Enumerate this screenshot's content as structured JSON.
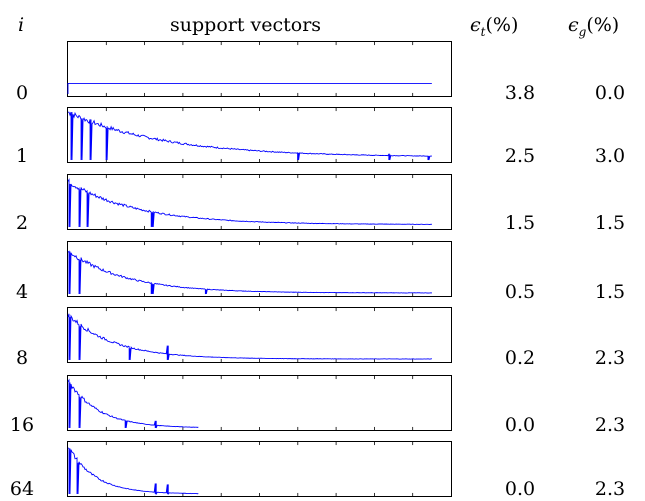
{
  "header": {
    "i": "i",
    "support_vectors": "support vectors",
    "eps_t_symbol": "ϵ",
    "eps_t_sub": "t",
    "eps_t_unit": "(%)",
    "eps_g_symbol": "ϵ",
    "eps_g_sub": "g",
    "eps_g_unit": "(%)"
  },
  "rows": [
    {
      "i": "0",
      "eps_t": "3.8",
      "eps_g": "0.0"
    },
    {
      "i": "1",
      "eps_t": "2.5",
      "eps_g": "3.0"
    },
    {
      "i": "2",
      "eps_t": "1.5",
      "eps_g": "1.5"
    },
    {
      "i": "4",
      "eps_t": "0.5",
      "eps_g": "1.5"
    },
    {
      "i": "8",
      "eps_t": "0.2",
      "eps_g": "2.3"
    },
    {
      "i": "16",
      "eps_t": "0.0",
      "eps_g": "2.3"
    },
    {
      "i": "64",
      "eps_t": "0.0",
      "eps_g": "2.3"
    }
  ],
  "chart_data": {
    "type": "line",
    "line_color": "#0000ff",
    "ylim": [
      0,
      1
    ],
    "xlim": [
      0,
      1
    ],
    "panels": [
      {
        "i": "0",
        "kind": "flat",
        "level": 0.22,
        "end": 0.95
      },
      {
        "i": "1",
        "kind": "decay",
        "peak": 1.0,
        "tail": 0.06,
        "decay": 0.25,
        "end": 0.95,
        "spikes": [
          [
            0.01,
            1.0
          ],
          [
            0.035,
            0.85
          ],
          [
            0.06,
            0.5
          ],
          [
            0.1,
            0.2
          ],
          [
            0.6,
            0.15
          ],
          [
            0.84,
            0.12
          ],
          [
            0.94,
            0.08
          ]
        ]
      },
      {
        "i": "2",
        "kind": "decay",
        "peak": 0.95,
        "tail": 0.05,
        "decay": 0.18,
        "end": 0.95,
        "spikes": [
          [
            0.005,
            0.9
          ],
          [
            0.03,
            0.55
          ],
          [
            0.05,
            0.35
          ],
          [
            0.22,
            0.1
          ]
        ]
      },
      {
        "i": "4",
        "kind": "decay",
        "peak": 0.9,
        "tail": 0.02,
        "decay": 0.15,
        "end": 0.95,
        "spikes": [
          [
            0.005,
            0.85
          ],
          [
            0.03,
            0.5
          ],
          [
            0.22,
            0.12
          ],
          [
            0.36,
            0.08
          ]
        ]
      },
      {
        "i": "8",
        "kind": "decay",
        "peak": 0.95,
        "tail": 0.02,
        "decay": 0.12,
        "end": 0.95,
        "spikes": [
          [
            0.005,
            0.9
          ],
          [
            0.03,
            0.45
          ],
          [
            0.26,
            0.3
          ],
          [
            0.16,
            0.1
          ]
        ]
      },
      {
        "i": "16",
        "kind": "decay",
        "peak": 1.0,
        "tail": 0.0,
        "decay": 0.08,
        "end": 0.34,
        "spikes": [
          [
            0.005,
            0.95
          ],
          [
            0.03,
            0.35
          ],
          [
            0.15,
            0.12
          ],
          [
            0.23,
            0.15
          ]
        ]
      },
      {
        "i": "64",
        "kind": "decay",
        "peak": 1.0,
        "tail": 0.0,
        "decay": 0.07,
        "end": 0.34,
        "spikes": [
          [
            0.005,
            0.95
          ],
          [
            0.025,
            0.4
          ],
          [
            0.23,
            0.22
          ],
          [
            0.26,
            0.2
          ]
        ]
      }
    ]
  }
}
